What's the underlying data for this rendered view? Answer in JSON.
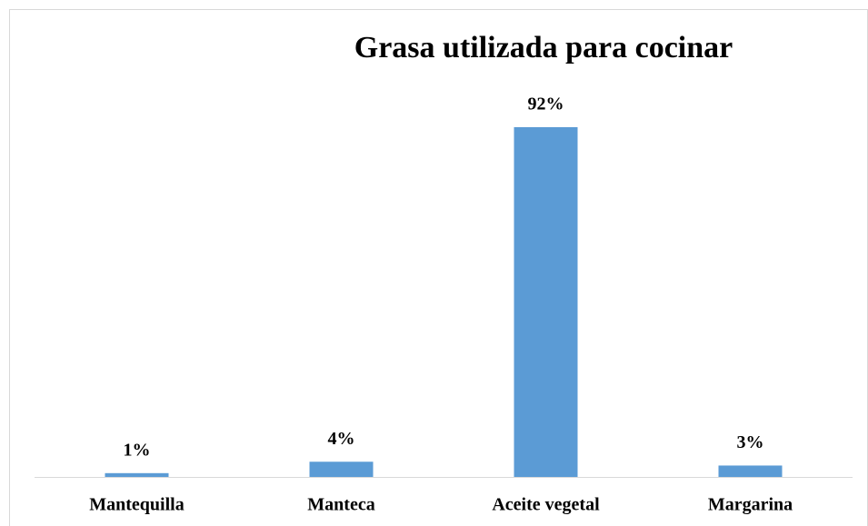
{
  "chart_data": {
    "type": "bar",
    "title": "Grasa utilizada para cocinar",
    "categories": [
      "Mantequilla",
      "Manteca",
      "Aceite vegetal",
      "Margarina"
    ],
    "values": [
      1,
      4,
      92,
      3
    ],
    "value_labels": [
      "1%",
      "4%",
      "92%",
      "3%"
    ],
    "color": "#5b9bd5"
  }
}
